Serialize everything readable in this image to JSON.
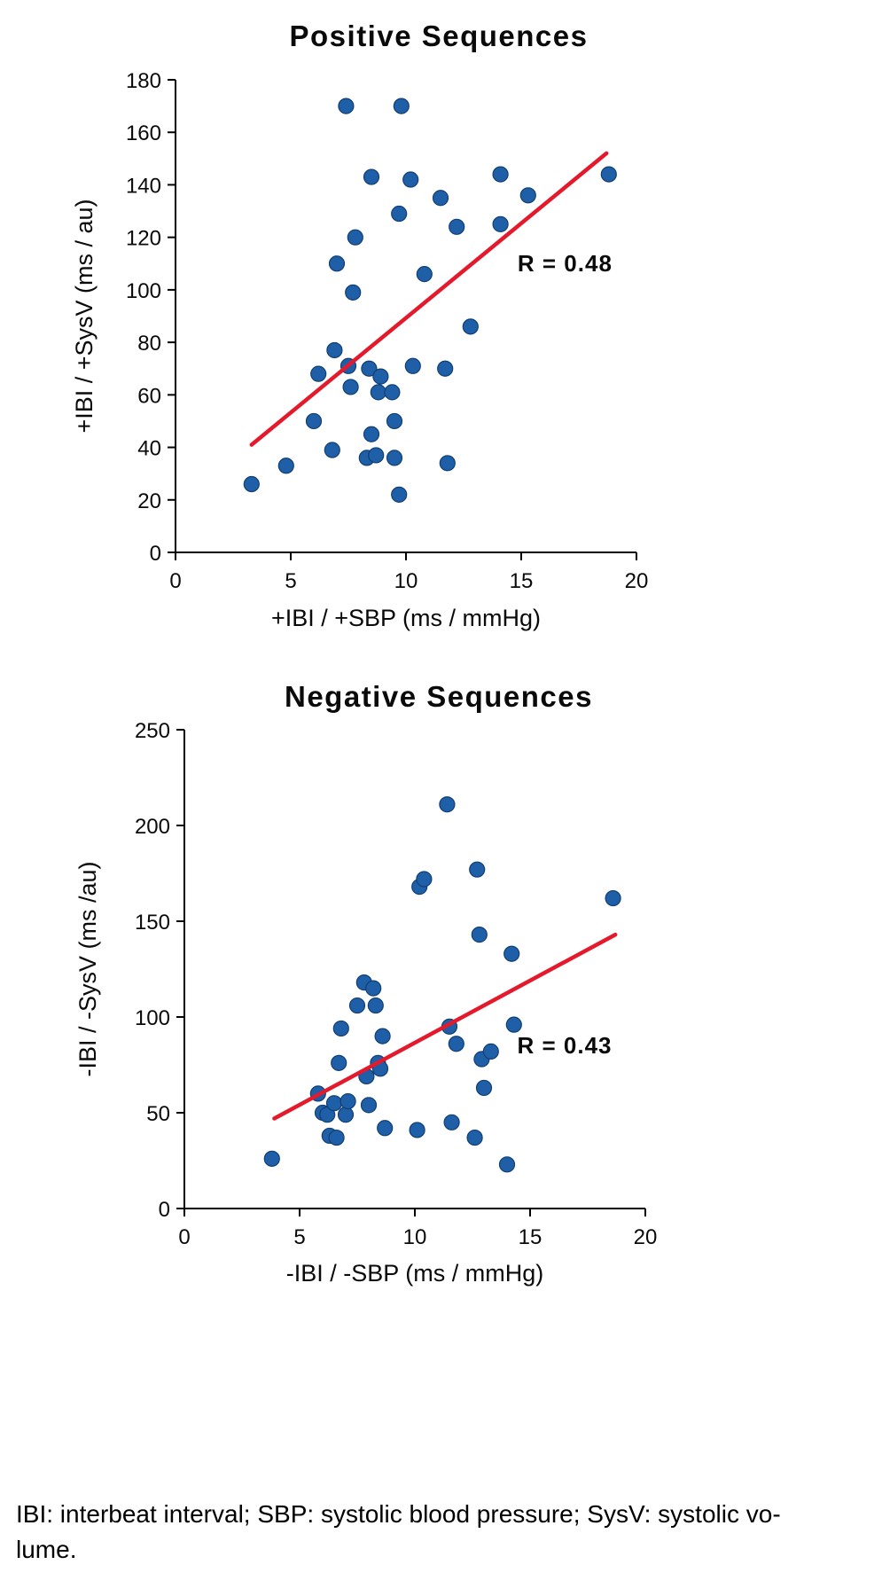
{
  "colors": {
    "point_fill": "#1e5fa8",
    "point_stroke": "#123f73",
    "trend": "#e41a2c",
    "annotation": "#e41a2c",
    "axis": "#000000"
  },
  "caption": {
    "line1": "IBI: interbeat interval; SBP: systolic blood pressure; SysV: systolic vo-",
    "line2": "lume."
  },
  "chart_data": [
    {
      "type": "scatter",
      "title": "Positive Sequences",
      "xlabel": "+IBI / +SBP (ms / mmHg)",
      "ylabel": "+IBI / +SysV (ms / au)",
      "xlim": [
        0,
        20
      ],
      "ylim": [
        0,
        180
      ],
      "xticks": [
        0,
        5,
        10,
        15,
        20
      ],
      "yticks": [
        0,
        20,
        40,
        60,
        80,
        100,
        120,
        140,
        160,
        180
      ],
      "annotation": "R = 0.48",
      "annotation_xy": [
        16.9,
        107
      ],
      "trend_line": {
        "x1": 3.3,
        "y1": 41,
        "x2": 18.7,
        "y2": 152
      },
      "points": [
        [
          3.3,
          26
        ],
        [
          4.8,
          33
        ],
        [
          6.0,
          50
        ],
        [
          6.2,
          68
        ],
        [
          6.8,
          39
        ],
        [
          6.9,
          77
        ],
        [
          7.0,
          110
        ],
        [
          7.4,
          170
        ],
        [
          7.5,
          71
        ],
        [
          7.6,
          63
        ],
        [
          7.7,
          99
        ],
        [
          7.8,
          120
        ],
        [
          8.3,
          36
        ],
        [
          8.4,
          70
        ],
        [
          8.5,
          143
        ],
        [
          8.5,
          45
        ],
        [
          8.7,
          37
        ],
        [
          8.8,
          61
        ],
        [
          8.9,
          67
        ],
        [
          9.4,
          61
        ],
        [
          9.5,
          50
        ],
        [
          9.5,
          36
        ],
        [
          9.7,
          22
        ],
        [
          9.7,
          129
        ],
        [
          9.8,
          170
        ],
        [
          10.2,
          142
        ],
        [
          10.3,
          71
        ],
        [
          10.8,
          106
        ],
        [
          11.5,
          135
        ],
        [
          11.7,
          70
        ],
        [
          11.8,
          34
        ],
        [
          12.2,
          124
        ],
        [
          12.8,
          86
        ],
        [
          14.1,
          144
        ],
        [
          14.1,
          125
        ],
        [
          15.3,
          136
        ],
        [
          18.8,
          144
        ]
      ]
    },
    {
      "type": "scatter",
      "title": "Negative Sequences",
      "xlabel": "-IBI / -SBP (ms / mmHg)",
      "ylabel": "-IBI / -SysV (ms /au)",
      "xlim": [
        0,
        20
      ],
      "ylim": [
        0,
        250
      ],
      "xticks": [
        0,
        5,
        10,
        15,
        20
      ],
      "yticks": [
        0,
        50,
        100,
        150,
        200,
        250
      ],
      "annotation": "R = 0.43",
      "annotation_xy": [
        16.5,
        81
      ],
      "trend_line": {
        "x1": 3.9,
        "y1": 47,
        "x2": 18.7,
        "y2": 143
      },
      "points": [
        [
          3.8,
          26
        ],
        [
          5.8,
          60
        ],
        [
          6.0,
          50
        ],
        [
          6.2,
          49
        ],
        [
          6.3,
          38
        ],
        [
          6.5,
          55
        ],
        [
          6.6,
          37
        ],
        [
          6.7,
          76
        ],
        [
          6.8,
          94
        ],
        [
          7.0,
          49
        ],
        [
          7.1,
          56
        ],
        [
          7.5,
          106
        ],
        [
          7.8,
          118
        ],
        [
          7.9,
          69
        ],
        [
          8.0,
          54
        ],
        [
          8.2,
          115
        ],
        [
          8.3,
          106
        ],
        [
          8.4,
          76
        ],
        [
          8.5,
          73
        ],
        [
          8.6,
          90
        ],
        [
          8.7,
          42
        ],
        [
          10.1,
          41
        ],
        [
          10.2,
          168
        ],
        [
          10.4,
          172
        ],
        [
          11.4,
          211
        ],
        [
          11.5,
          95
        ],
        [
          11.6,
          45
        ],
        [
          11.8,
          86
        ],
        [
          12.6,
          37
        ],
        [
          12.7,
          177
        ],
        [
          12.8,
          143
        ],
        [
          12.9,
          78
        ],
        [
          13.0,
          63
        ],
        [
          13.3,
          82
        ],
        [
          14.0,
          23
        ],
        [
          14.2,
          133
        ],
        [
          14.3,
          96
        ],
        [
          18.6,
          162
        ]
      ]
    }
  ]
}
